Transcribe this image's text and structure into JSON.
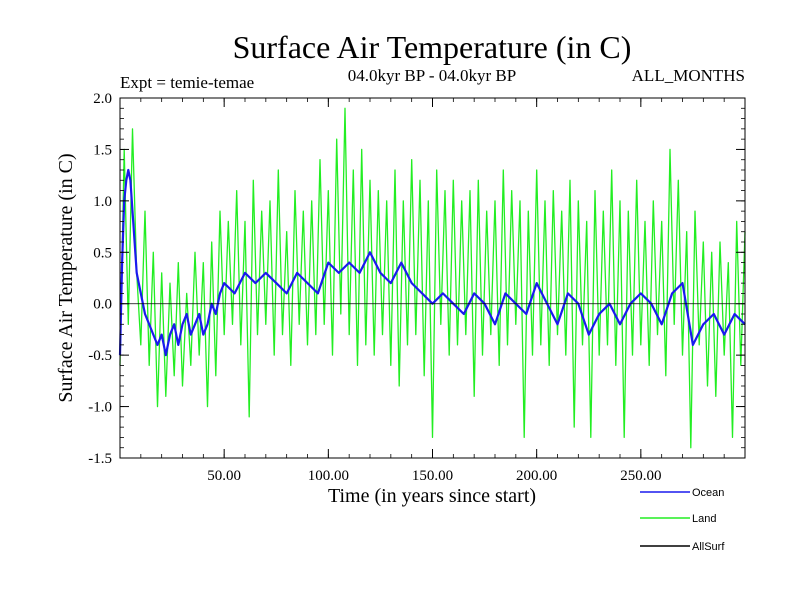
{
  "chart_data": {
    "type": "line",
    "title": "Surface Air Temperature (in C)",
    "subtitle_left": "Expt = temie-temae",
    "subtitle_center": "04.0kyr BP - 04.0kyr BP",
    "subtitle_right": "ALL_MONTHS",
    "xlabel": "Time (in years since start)",
    "ylabel": "Surface Air Temperature (in C)",
    "xlim": [
      0,
      300
    ],
    "ylim": [
      -1.5,
      2.0
    ],
    "x_ticks": [
      {
        "value": 50,
        "label": "50.00"
      },
      {
        "value": 100,
        "label": "100.00"
      },
      {
        "value": 150,
        "label": "150.00"
      },
      {
        "value": 200,
        "label": "200.00"
      },
      {
        "value": 250,
        "label": "250.00"
      }
    ],
    "y_ticks": [
      {
        "value": 2.0,
        "label": "2.0"
      },
      {
        "value": 1.5,
        "label": "1.5"
      },
      {
        "value": 1.0,
        "label": "1.0"
      },
      {
        "value": 0.5,
        "label": "0.5"
      },
      {
        "value": 0.0,
        "label": "0.0"
      },
      {
        "value": -0.5,
        "label": "-0.5"
      },
      {
        "value": -1.0,
        "label": "-1.0"
      },
      {
        "value": -1.5,
        "label": "-1.5"
      }
    ],
    "reference_line": 0,
    "series": [
      {
        "name": "Land",
        "color": "#22ee22",
        "x": [
          0,
          2,
          4,
          6,
          8,
          10,
          12,
          14,
          16,
          18,
          20,
          22,
          24,
          26,
          28,
          30,
          32,
          34,
          36,
          38,
          40,
          42,
          44,
          46,
          48,
          50,
          52,
          54,
          56,
          58,
          60,
          62,
          64,
          66,
          68,
          70,
          72,
          74,
          76,
          78,
          80,
          82,
          84,
          86,
          88,
          90,
          92,
          94,
          96,
          98,
          100,
          102,
          104,
          106,
          108,
          110,
          112,
          114,
          116,
          118,
          120,
          122,
          124,
          126,
          128,
          130,
          132,
          134,
          136,
          138,
          140,
          142,
          144,
          146,
          148,
          150,
          152,
          154,
          156,
          158,
          160,
          162,
          164,
          166,
          168,
          170,
          172,
          174,
          176,
          178,
          180,
          182,
          184,
          186,
          188,
          190,
          192,
          194,
          196,
          198,
          200,
          202,
          204,
          206,
          208,
          210,
          212,
          214,
          216,
          218,
          220,
          222,
          224,
          226,
          228,
          230,
          232,
          234,
          236,
          238,
          240,
          242,
          244,
          246,
          248,
          250,
          252,
          254,
          256,
          258,
          260,
          262,
          264,
          266,
          268,
          270,
          272,
          274,
          276,
          278,
          280,
          282,
          284,
          286,
          288,
          290,
          292,
          294,
          296,
          298,
          300
        ],
        "values": [
          -0.6,
          1.5,
          -0.2,
          1.7,
          0.3,
          -0.4,
          0.9,
          -0.6,
          0.5,
          -1.0,
          0.3,
          -0.9,
          0.2,
          -0.7,
          0.4,
          -0.8,
          0.1,
          -0.6,
          0.5,
          -0.5,
          0.4,
          -1.0,
          0.6,
          -0.7,
          0.9,
          -0.3,
          0.8,
          -0.2,
          1.1,
          -0.4,
          0.8,
          -1.1,
          1.2,
          -0.3,
          0.9,
          -0.2,
          1.0,
          -0.5,
          1.3,
          -0.3,
          0.7,
          -0.6,
          1.1,
          -0.2,
          0.9,
          -0.4,
          1.0,
          -0.3,
          1.4,
          -0.2,
          1.1,
          -0.5,
          1.6,
          -0.1,
          1.9,
          -0.3,
          1.3,
          -0.6,
          1.5,
          -0.4,
          1.2,
          -0.5,
          1.1,
          -0.3,
          1.0,
          -0.6,
          1.3,
          -0.8,
          1.0,
          -0.4,
          1.4,
          -0.3,
          1.2,
          -0.7,
          1.0,
          -1.3,
          1.3,
          -0.2,
          1.1,
          -0.5,
          1.2,
          -0.4,
          1.0,
          -0.3,
          1.1,
          -0.9,
          1.2,
          -0.5,
          0.9,
          -0.3,
          1.0,
          -0.6,
          1.3,
          -0.4,
          1.1,
          -0.2,
          1.0,
          -1.3,
          0.9,
          -0.5,
          1.3,
          -0.4,
          1.0,
          -0.6,
          1.1,
          -0.3,
          0.9,
          -0.5,
          1.2,
          -1.2,
          1.0,
          -0.4,
          0.8,
          -1.3,
          1.1,
          -0.5,
          0.9,
          -0.4,
          1.3,
          -0.6,
          1.0,
          -1.3,
          0.9,
          -0.5,
          1.2,
          -0.4,
          0.8,
          -0.6,
          1.0,
          -0.3,
          0.8,
          -0.7,
          1.5,
          -0.2,
          1.2,
          -0.5,
          0.7,
          -1.4,
          0.9,
          -0.4,
          0.6,
          -0.8,
          0.5,
          -0.9,
          0.6,
          -0.5,
          0.4,
          -1.3,
          0.8,
          -0.6,
          0.7
        ]
      },
      {
        "name": "Ocean",
        "color": "#1a1aee",
        "x": [
          0,
          1,
          2,
          3,
          4,
          5,
          6,
          7,
          8,
          10,
          12,
          14,
          16,
          18,
          20,
          22,
          24,
          26,
          28,
          30,
          32,
          34,
          36,
          38,
          40,
          42,
          44,
          46,
          48,
          50,
          55,
          60,
          65,
          70,
          75,
          80,
          85,
          90,
          95,
          100,
          105,
          110,
          115,
          120,
          125,
          130,
          135,
          140,
          145,
          150,
          155,
          160,
          165,
          170,
          175,
          180,
          185,
          190,
          195,
          200,
          205,
          210,
          215,
          220,
          225,
          230,
          235,
          240,
          245,
          250,
          255,
          260,
          265,
          270,
          275,
          280,
          285,
          290,
          295,
          300
        ],
        "values": [
          -0.5,
          0.4,
          1.0,
          1.2,
          1.3,
          1.2,
          0.9,
          0.6,
          0.3,
          0.1,
          -0.1,
          -0.2,
          -0.3,
          -0.4,
          -0.3,
          -0.5,
          -0.3,
          -0.2,
          -0.4,
          -0.2,
          -0.1,
          -0.3,
          -0.2,
          -0.1,
          -0.3,
          -0.2,
          0.0,
          -0.1,
          0.1,
          0.2,
          0.1,
          0.3,
          0.2,
          0.3,
          0.2,
          0.1,
          0.3,
          0.2,
          0.1,
          0.4,
          0.3,
          0.4,
          0.3,
          0.5,
          0.3,
          0.2,
          0.4,
          0.2,
          0.1,
          0.0,
          0.1,
          0.0,
          -0.1,
          0.1,
          0.0,
          -0.2,
          0.1,
          0.0,
          -0.1,
          0.2,
          0.0,
          -0.2,
          0.1,
          0.0,
          -0.3,
          -0.1,
          0.0,
          -0.2,
          0.0,
          0.1,
          0.0,
          -0.2,
          0.1,
          0.2,
          -0.4,
          -0.2,
          -0.1,
          -0.3,
          -0.1,
          -0.2
        ]
      },
      {
        "name": "AllSurf",
        "color": "#000000",
        "x": [],
        "values": []
      }
    ],
    "legend": [
      {
        "label": "Ocean",
        "color": "#1a1aee"
      },
      {
        "label": "Land",
        "color": "#22ee22"
      },
      {
        "label": "AllSurf",
        "color": "#000000"
      }
    ],
    "legend_position": "bottom-right"
  }
}
